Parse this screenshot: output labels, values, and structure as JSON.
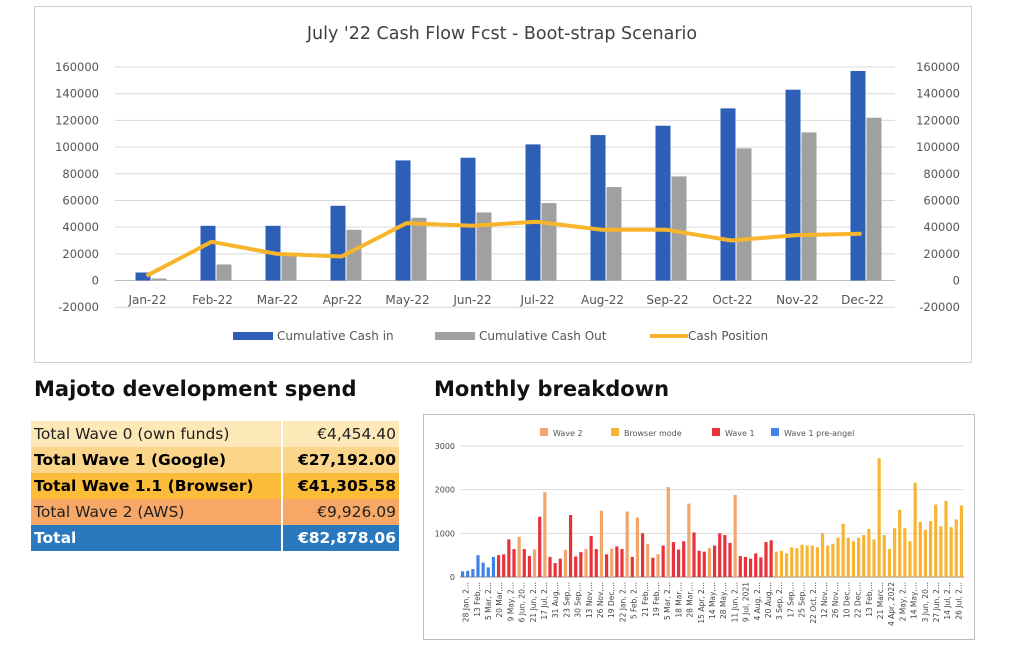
{
  "main_chart": {
    "title": "July '22 Cash Flow  Fcst - Boot-strap Scenario",
    "legend": [
      "Cumulative Cash in",
      "Cumulative Cash Out",
      "Cash Position"
    ],
    "y_ticks": [
      "160000",
      "140000",
      "120000",
      "100000",
      "80000",
      "60000",
      "40000",
      "20000",
      "0",
      "-20000"
    ],
    "colors": {
      "cash_in": "#2e5fb7",
      "cash_out": "#a0a0a0",
      "cash_position": "#f8b52b"
    }
  },
  "spend": {
    "heading": "Majoto development spend",
    "rows": [
      {
        "label": "Total Wave 0 (own funds)",
        "amount": "€4,454.40",
        "bold": false,
        "bg": "#fde8b8",
        "fg": "#222222"
      },
      {
        "label": "Total Wave 1 (Google)",
        "amount": "€27,192.00",
        "bold": true,
        "bg": "#fbd58a",
        "fg": "#000000"
      },
      {
        "label": "Total Wave 1.1 (Browser)",
        "amount": "€41,305.58",
        "bold": true,
        "bg": "#fbbc3a",
        "fg": "#000000"
      },
      {
        "label": "Total Wave 2 (AWS)",
        "amount": "€9,926.09",
        "bold": false,
        "bg": "#f8a866",
        "fg": "#222222"
      },
      {
        "label": "Total",
        "amount": "€82,878.06",
        "bold": true,
        "bg": "#2a78bd",
        "fg": "#ffffff"
      }
    ]
  },
  "monthly": {
    "heading": "Monthly breakdown",
    "legend": [
      {
        "name": "Wave 2",
        "color": "#f3a56c"
      },
      {
        "name": "Browser mode",
        "color": "#f7b533"
      },
      {
        "name": "Wave 1",
        "color": "#e8323a"
      },
      {
        "name": "Wave 1 pre-angel",
        "color": "#3f83e6"
      }
    ],
    "y_ticks": [
      "3000",
      "2000",
      "1000",
      "0"
    ],
    "x_labels": [
      "28 Jan, 2...",
      "13 Feb,...",
      "5 Mar, 2...",
      "20 Mar,...",
      "9 May, 2...",
      "6 Jun, 20...",
      "21 Jun, 2...",
      "17 Jul, 2...",
      "31 Aug,...",
      "23 Sep,...",
      "30 Sep,...",
      "13 Nov,...",
      "26 Nov,...",
      "19 Dec,...",
      "22 Jan, 2...",
      "5 Feb, 2...",
      "21 Feb,...",
      "19 Feb,...",
      "5 Mar, 2...",
      "18 Mar,...",
      "28 Mar,...",
      "15 Apr, 2...",
      "14 May,...",
      "28 May,...",
      "11 Jun, 2...",
      "9 Jul, 2021",
      "4 Aug, 2...",
      "20 Aug,...",
      "3 Sep, 2...",
      "17 Sep,...",
      "25 Sep,...",
      "22 Oct, 2...",
      "12 Nov,...",
      "26 Nov,...",
      "10 Dec,...",
      "22 Dec,...",
      "13 Feb,...",
      "21 Marc...",
      "4 Apr, 2022",
      "2 May, 2...",
      "14 May,...",
      "3 Jun, 20...",
      "27 Jun, 2...",
      "14 Jul, 2...",
      "26 Jul, 2..."
    ]
  },
  "chart_data": [
    {
      "type": "bar",
      "title": "July '22 Cash Flow  Fcst - Boot-strap Scenario",
      "categories": [
        "Jan-22",
        "Feb-22",
        "Mar-22",
        "Apr-22",
        "May-22",
        "Jun-22",
        "Jul-22",
        "Aug-22",
        "Sep-22",
        "Oct-22",
        "Nov-22",
        "Dec-22"
      ],
      "series": [
        {
          "name": "Cumulative Cash in",
          "type": "bar",
          "values": [
            6000,
            41000,
            41000,
            56000,
            90000,
            92000,
            102000,
            109000,
            116000,
            129000,
            143000,
            157000
          ]
        },
        {
          "name": "Cumulative Cash Out",
          "type": "bar",
          "values": [
            1500,
            12000,
            20000,
            38000,
            47000,
            51000,
            58000,
            70000,
            78000,
            99000,
            111000,
            122000
          ]
        },
        {
          "name": "Cash Position",
          "type": "line",
          "values": [
            3500,
            29000,
            20000,
            18000,
            43000,
            41000,
            44000,
            38000,
            38000,
            30000,
            34000,
            35000
          ]
        }
      ],
      "ylim": [
        -20000,
        160000
      ],
      "legend": "bottom"
    },
    {
      "type": "bar",
      "title": "",
      "y_axis": [
        0,
        3000
      ],
      "segments": [
        {
          "name": "Wave 1 pre-angel",
          "color": "#3f83e6",
          "values": [
            130,
            140,
            180,
            500,
            330,
            220,
            460
          ]
        },
        {
          "name": "Wave 1",
          "color": "#e8323a",
          "values": [
            500,
            520,
            860,
            640,
            640,
            480,
            1380,
            460,
            320,
            420,
            1420,
            470,
            570,
            940,
            640,
            520,
            700,
            640,
            460,
            1000,
            440,
            720,
            800,
            630,
            820,
            1020,
            600,
            580,
            720,
            1000,
            960,
            780,
            480,
            460,
            420,
            540,
            450,
            800,
            840
          ]
        },
        {
          "name": "Wave 2",
          "color": "#f3a56c",
          "values": [
            920,
            630,
            1940,
            620,
            640,
            1520,
            650,
            1500,
            1360,
            760,
            520,
            2060,
            1680,
            660,
            1880
          ]
        },
        {
          "name": "Browser mode",
          "color": "#f7b533",
          "values": [
            580,
            600,
            540,
            680,
            660,
            740,
            720,
            720,
            680,
            1000,
            720,
            760,
            900,
            1220,
            900,
            820,
            900,
            960,
            1100,
            860,
            2720,
            960,
            640,
            1120,
            1540,
            1120,
            820,
            2160,
            1260,
            1080,
            1280,
            1660,
            1160,
            1740,
            1140,
            1320,
            1640
          ]
        }
      ]
    }
  ]
}
